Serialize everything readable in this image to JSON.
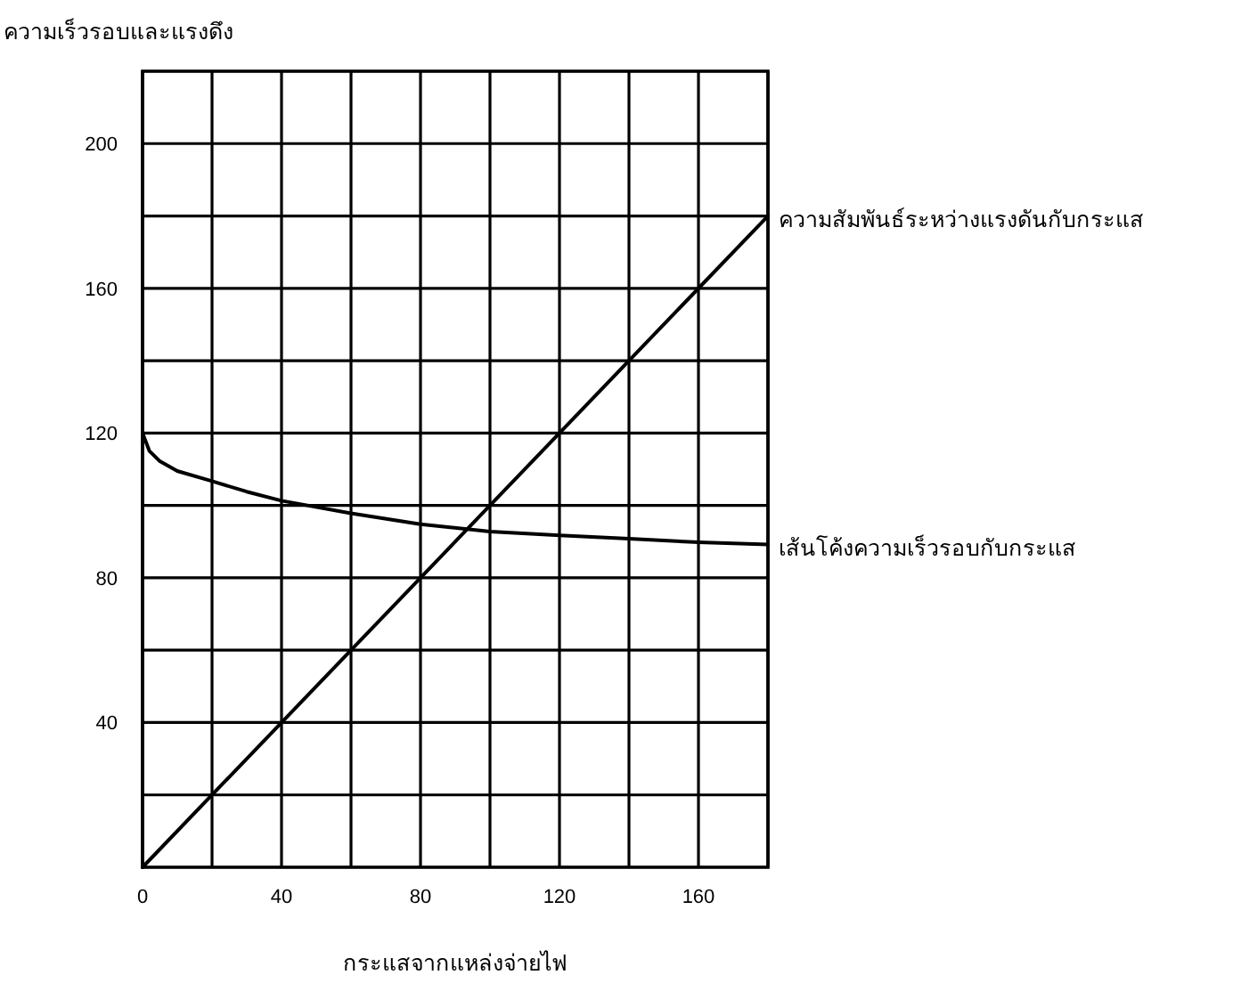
{
  "chart_data": {
    "type": "line",
    "xlabel": "กระแสจากแหล่งจ่ายไฟ",
    "ylabel": "ความเร็วรอบและแรงดึง",
    "xlim": [
      0,
      180
    ],
    "ylim": [
      0,
      220
    ],
    "xticks": [
      0,
      {
        "value": 20,
        "label": null
      },
      40,
      {
        "value": 60,
        "label": null
      },
      80,
      {
        "value": 100,
        "label": null
      },
      120,
      {
        "value": 140,
        "label": null
      },
      160,
      {
        "value": 180,
        "label": null
      }
    ],
    "yticks": [
      {
        "value": 20,
        "label": null
      },
      40,
      {
        "value": 60,
        "label": null
      },
      80,
      {
        "value": 100,
        "label": null
      },
      120,
      {
        "value": 140,
        "label": null
      },
      160,
      {
        "value": 180,
        "label": null
      },
      200
    ],
    "grid": true,
    "marker": "none",
    "line_style": "solid",
    "series": [
      {
        "color": "#000000",
        "x": [
          0,
          180
        ],
        "values": [
          0,
          180
        ]
      },
      {
        "color": "#000000",
        "x": [
          0,
          2,
          5,
          10,
          20,
          30,
          40,
          60,
          80,
          100,
          120,
          140,
          160,
          180
        ],
        "values": [
          120,
          115,
          112.2,
          109.5,
          106.7,
          103.8,
          101.3,
          97.8,
          94.8,
          92.8,
          91.7,
          90.8,
          89.8,
          89.2
        ]
      }
    ],
    "annotations": [
      {
        "text": "ความสัมพันธ์ระหว่างแรงดันกับกระแส",
        "x": 180,
        "y": 180
      },
      {
        "text": "เส้นโค้งความเร็วรอบกับกระแส",
        "x": 180,
        "y": 89.2
      }
    ]
  }
}
